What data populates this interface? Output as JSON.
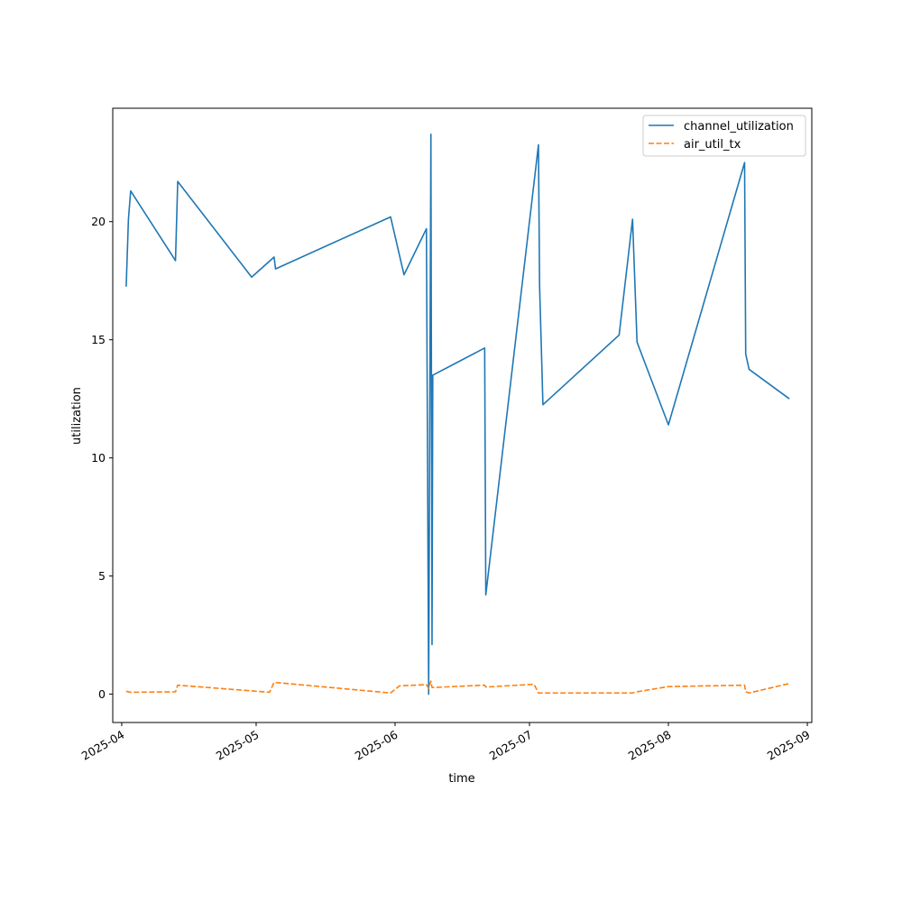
{
  "chart_data": {
    "type": "line",
    "title": "",
    "xlabel": "time",
    "ylabel": "utilization",
    "x_type": "date",
    "xlim": [
      "2025-03-30",
      "2025-09-02"
    ],
    "ylim": [
      -1.2,
      24.8
    ],
    "x_ticks": [
      {
        "value": "2025-04-01",
        "label": "2025-04"
      },
      {
        "value": "2025-05-01",
        "label": "2025-05"
      },
      {
        "value": "2025-06-01",
        "label": "2025-06"
      },
      {
        "value": "2025-07-01",
        "label": "2025-07"
      },
      {
        "value": "2025-08-01",
        "label": "2025-08"
      },
      {
        "value": "2025-09-01",
        "label": "2025-09"
      }
    ],
    "y_ticks": [
      0,
      5,
      10,
      15,
      20
    ],
    "grid": false,
    "legend_position": "top-right",
    "series": [
      {
        "name": "channel_utilization",
        "color": "#1f77b4",
        "style": "solid",
        "points": [
          [
            "2025-04-02",
            17.25
          ],
          [
            "2025-04-02 12:00",
            20.1
          ],
          [
            "2025-04-03",
            21.3
          ],
          [
            "2025-04-13",
            18.35
          ],
          [
            "2025-04-13 12:00",
            21.7
          ],
          [
            "2025-04-30",
            17.65
          ],
          [
            "2025-05-05",
            18.5
          ],
          [
            "2025-05-05 08:00",
            18.0
          ],
          [
            "2025-05-31",
            20.2
          ],
          [
            "2025-06-03",
            17.75
          ],
          [
            "2025-06-08",
            19.7
          ],
          [
            "2025-06-08 12:00",
            0.0
          ],
          [
            "2025-06-09",
            23.7
          ],
          [
            "2025-06-09 06:00",
            2.1
          ],
          [
            "2025-06-09 10:00",
            13.5
          ],
          [
            "2025-06-21",
            14.65
          ],
          [
            "2025-06-21 06:00",
            4.2
          ],
          [
            "2025-07-03",
            23.25
          ],
          [
            "2025-07-03 06:00",
            17.3
          ],
          [
            "2025-07-04",
            12.25
          ],
          [
            "2025-07-21",
            15.2
          ],
          [
            "2025-07-24",
            20.1
          ],
          [
            "2025-07-25",
            14.9
          ],
          [
            "2025-08-01",
            11.4
          ],
          [
            "2025-08-18",
            22.5
          ],
          [
            "2025-08-18 06:00",
            14.4
          ],
          [
            "2025-08-19",
            13.75
          ],
          [
            "2025-08-28",
            12.5
          ]
        ]
      },
      {
        "name": "air_util_tx",
        "color": "#ff7f0e",
        "style": "dashed",
        "points": [
          [
            "2025-04-02",
            0.12
          ],
          [
            "2025-04-03",
            0.08
          ],
          [
            "2025-04-13",
            0.1
          ],
          [
            "2025-04-13 12:00",
            0.38
          ],
          [
            "2025-05-04",
            0.08
          ],
          [
            "2025-05-05",
            0.5
          ],
          [
            "2025-05-31",
            0.05
          ],
          [
            "2025-06-02",
            0.35
          ],
          [
            "2025-06-08",
            0.4
          ],
          [
            "2025-06-08 12:00",
            0.25
          ],
          [
            "2025-06-09",
            0.55
          ],
          [
            "2025-06-09 06:00",
            0.28
          ],
          [
            "2025-06-21",
            0.38
          ],
          [
            "2025-06-21 06:00",
            0.3
          ],
          [
            "2025-07-02",
            0.42
          ],
          [
            "2025-07-03",
            0.05
          ],
          [
            "2025-07-24",
            0.05
          ],
          [
            "2025-07-25",
            0.1
          ],
          [
            "2025-08-01",
            0.32
          ],
          [
            "2025-08-18",
            0.38
          ],
          [
            "2025-08-18 06:00",
            0.1
          ],
          [
            "2025-08-19",
            0.05
          ],
          [
            "2025-08-28",
            0.45
          ]
        ]
      }
    ]
  }
}
